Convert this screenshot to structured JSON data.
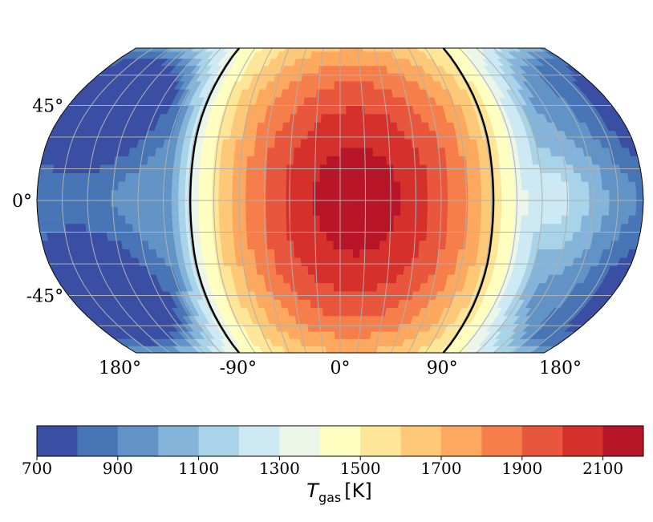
{
  "chart_data": {
    "type": "heatmap",
    "projection": "robinson",
    "title": "",
    "colorbar": {
      "label_symbol": "T",
      "label_subscript": "gas",
      "label_unit": "[K]",
      "min": 700,
      "max": 2200,
      "step": 100,
      "tick_values": [
        700,
        900,
        1100,
        1300,
        1500,
        1700,
        1900,
        2100
      ],
      "tick_labels": [
        "700",
        "900",
        "1100",
        "1300",
        "1500",
        "1700",
        "1900",
        "2100"
      ],
      "colors": [
        "#3a4fa4",
        "#4875b6",
        "#6193c6",
        "#84b4d9",
        "#a8d3e8",
        "#cde9f3",
        "#ebf6e8",
        "#fefec0",
        "#fee698",
        "#fdc877",
        "#fca85e",
        "#f57e4b",
        "#e8573d",
        "#d5302b",
        "#b71528"
      ]
    },
    "x_ticks": [
      "180°",
      "-90°",
      "0°",
      "90°",
      "180°"
    ],
    "y_ticks": [
      "45°",
      "0°",
      "-45°"
    ],
    "x_tick_lon": [
      -180,
      -90,
      0,
      90,
      180
    ],
    "y_tick_lat": [
      45,
      0,
      -45
    ],
    "lat_range": [
      -75,
      75
    ],
    "gridlines": {
      "lon_step_deg": 15,
      "lat_step_deg": 15
    },
    "terminator_lon": [
      -90,
      90
    ],
    "substellar_lon": 10,
    "temperature_model": {
      "day_max_K": 2150,
      "day_edge_K": 1400,
      "night_K": 1000,
      "night_cold_spots": [
        {
          "lon": -145,
          "lat": 45,
          "T": 700
        },
        {
          "lon": -145,
          "lat": -45,
          "T": 700
        },
        {
          "lon": 190,
          "lat": 35,
          "T": 830
        },
        {
          "lon": 190,
          "lat": -35,
          "T": 830
        }
      ],
      "night_warm_spot": {
        "lon": 125,
        "lat": 0,
        "T": 1260
      }
    }
  }
}
